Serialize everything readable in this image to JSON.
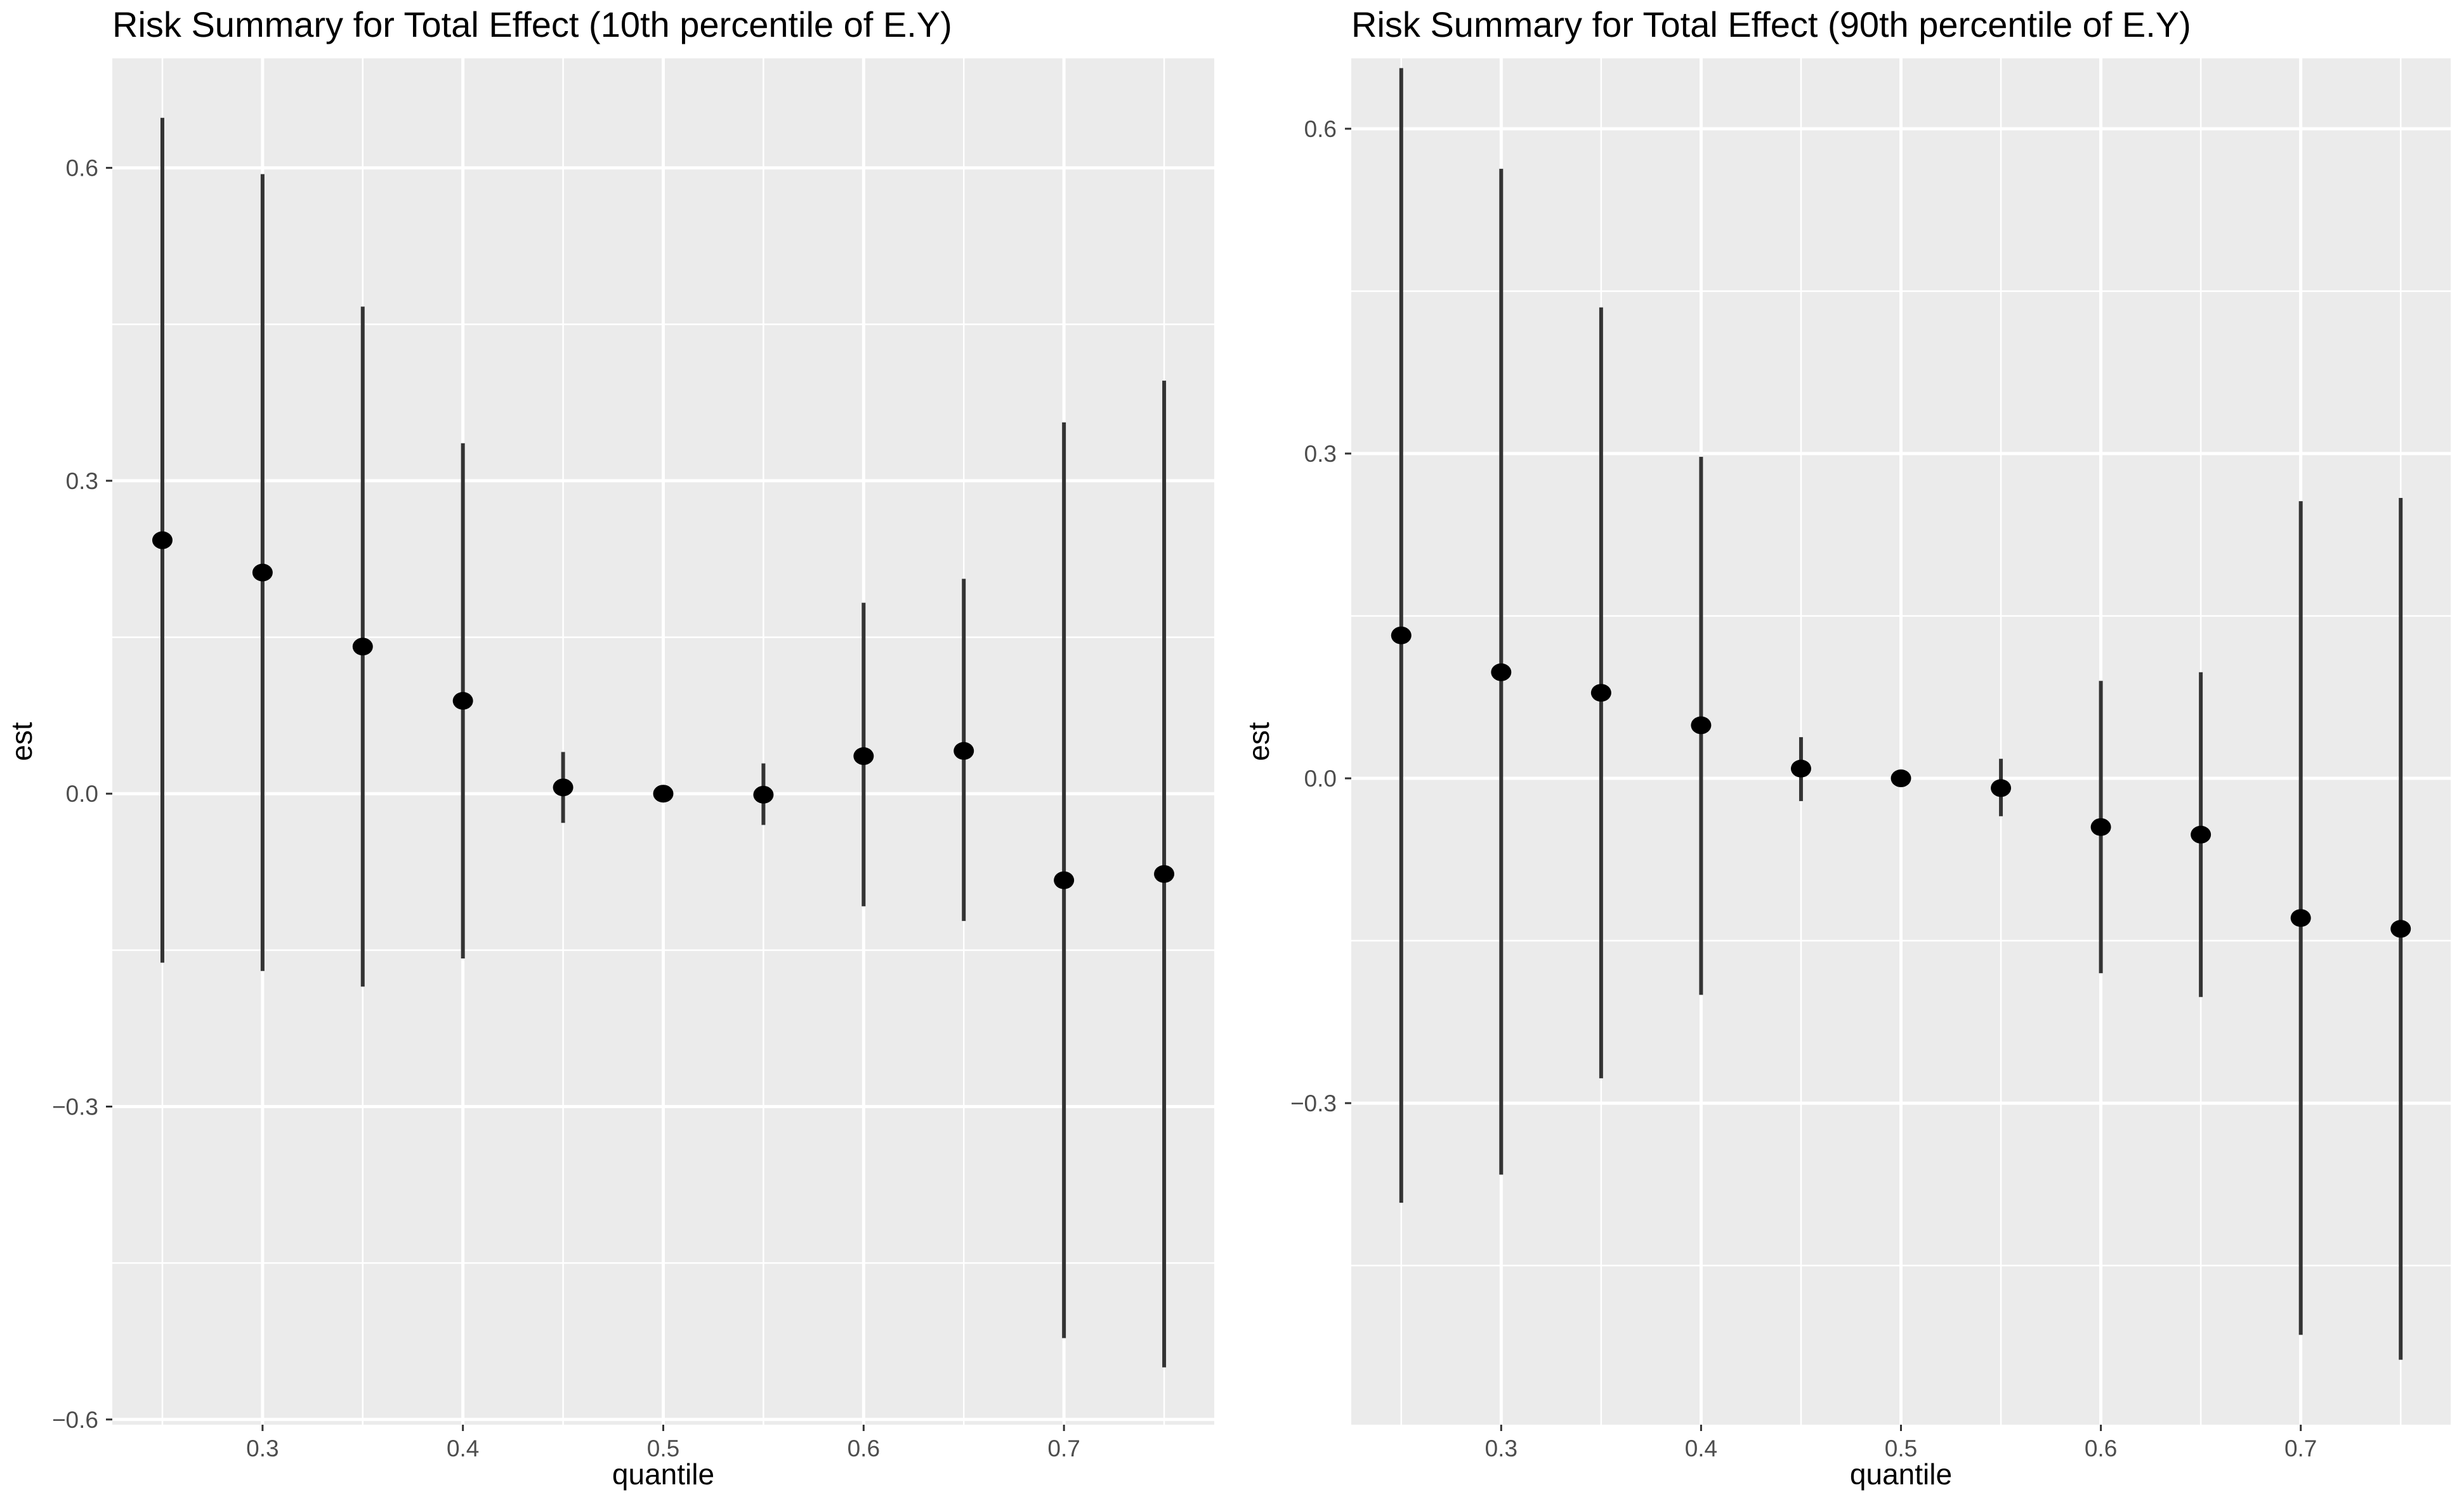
{
  "chart_data": [
    {
      "type": "scatter",
      "title": "Risk Summary for Total Effect (10th percentile of E.Y)",
      "xlabel": "quantile",
      "ylabel": "est",
      "xlim": [
        0.225,
        0.775
      ],
      "ylim": [
        -0.605,
        0.705
      ],
      "x_ticks": [
        0.3,
        0.4,
        0.5,
        0.6,
        0.7
      ],
      "x_tick_labels": [
        "0.3",
        "0.4",
        "0.5",
        "0.6",
        "0.7"
      ],
      "y_ticks": [
        -0.6,
        -0.3,
        0.0,
        0.3,
        0.6
      ],
      "y_tick_labels": [
        "−0.6",
        "−0.3",
        "0.0",
        "0.3",
        "0.6"
      ],
      "grid": true,
      "series": [
        {
          "x": [
            0.25,
            0.3,
            0.35,
            0.4,
            0.45,
            0.5,
            0.55,
            0.6,
            0.65,
            0.7,
            0.75
          ],
          "est": [
            0.243,
            0.212,
            0.141,
            0.089,
            0.006,
            0.0,
            -0.001,
            0.036,
            0.041,
            -0.083,
            -0.077
          ],
          "lower": [
            -0.162,
            -0.17,
            -0.185,
            -0.158,
            -0.028,
            0.0,
            -0.03,
            -0.108,
            -0.122,
            -0.522,
            -0.55
          ],
          "upper": [
            0.648,
            0.594,
            0.467,
            0.336,
            0.04,
            0.0,
            0.029,
            0.183,
            0.206,
            0.356,
            0.396
          ]
        }
      ]
    },
    {
      "type": "scatter",
      "title": "Risk Summary for Total Effect (90th percentile of E.Y)",
      "xlabel": "quantile",
      "ylabel": "est",
      "xlim": [
        0.225,
        0.775
      ],
      "ylim": [
        -0.597,
        0.665
      ],
      "x_ticks": [
        0.3,
        0.4,
        0.5,
        0.6,
        0.7
      ],
      "x_tick_labels": [
        "0.3",
        "0.4",
        "0.5",
        "0.6",
        "0.7"
      ],
      "y_ticks": [
        -0.3,
        0.0,
        0.3,
        0.6
      ],
      "y_tick_labels": [
        "−0.3",
        "0.0",
        "0.3",
        "0.6"
      ],
      "grid": true,
      "series": [
        {
          "x": [
            0.25,
            0.3,
            0.35,
            0.4,
            0.45,
            0.5,
            0.55,
            0.6,
            0.65,
            0.7,
            0.75
          ],
          "est": [
            0.132,
            0.098,
            0.079,
            0.049,
            0.009,
            0.0,
            -0.009,
            -0.045,
            -0.052,
            -0.129,
            -0.139
          ],
          "lower": [
            -0.392,
            -0.366,
            -0.277,
            -0.2,
            -0.021,
            0.0,
            -0.035,
            -0.18,
            -0.202,
            -0.514,
            -0.537
          ],
          "upper": [
            0.656,
            0.563,
            0.435,
            0.297,
            0.038,
            0.0,
            0.018,
            0.09,
            0.098,
            0.256,
            0.259
          ]
        }
      ]
    }
  ]
}
